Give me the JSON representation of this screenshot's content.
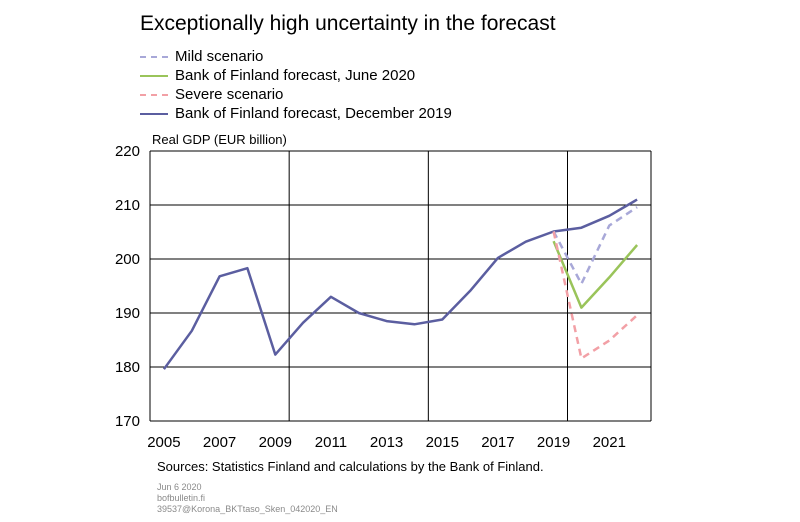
{
  "title": "Exceptionally high uncertainty in the forecast",
  "colors": {
    "mild": "#a8a8d8",
    "june2020": "#9ac45a",
    "severe": "#f2a0a6",
    "dec2019": "#5b5ea0",
    "grid": "#000000"
  },
  "legend": [
    {
      "label": "Mild scenario",
      "color": "#a8a8d8",
      "dash": true
    },
    {
      "label": "Bank of Finland forecast, June 2020",
      "color": "#9ac45a",
      "dash": false
    },
    {
      "label": "Severe scenario",
      "color": "#f2a0a6",
      "dash": true
    },
    {
      "label": "Bank of Finland forecast, December 2019",
      "color": "#5b5ea0",
      "dash": false
    }
  ],
  "sources": "Sources: Statistics Finland and calculations by the Bank of Finland.",
  "footer": {
    "date": "Jun 6 2020",
    "site": "bofbulletin.fi",
    "code": "39537@Korona_BKTtaso_Sken_042020_EN"
  },
  "chart_data": {
    "type": "line",
    "title": "Exceptionally high uncertainty in the forecast",
    "ylabel": "Real GDP (EUR billion)",
    "xlabel": "",
    "xlim": [
      2004.5,
      2022.5
    ],
    "ylim": [
      170,
      220
    ],
    "yticks": [
      170,
      180,
      190,
      200,
      210,
      220
    ],
    "xticks": [
      2005,
      2007,
      2009,
      2011,
      2013,
      2015,
      2017,
      2019,
      2021
    ],
    "xgrid": [
      2004.5,
      2009.5,
      2014.5,
      2019.5,
      2022.5
    ],
    "grid": true,
    "legend_position": "top-left, above plot",
    "series": [
      {
        "name": "Bank of Finland forecast, December 2019",
        "color": "#5b5ea0",
        "dash": false,
        "x": [
          2005,
          2006,
          2007,
          2008,
          2009,
          2010,
          2011,
          2012,
          2013,
          2014,
          2015,
          2016,
          2017,
          2018,
          2019,
          2020,
          2021,
          2022
        ],
        "y": [
          179.6,
          186.7,
          196.8,
          198.3,
          182.3,
          188.2,
          193.0,
          190.0,
          188.5,
          187.9,
          188.8,
          194.1,
          200.2,
          203.2,
          205.1,
          205.8,
          208.0,
          211.0
        ]
      },
      {
        "name": "Mild scenario",
        "color": "#a8a8d8",
        "dash": true,
        "x": [
          2019,
          2020,
          2021,
          2022
        ],
        "y": [
          205.1,
          195.4,
          206.2,
          209.6
        ]
      },
      {
        "name": "Bank of Finland forecast, June 2020",
        "color": "#9ac45a",
        "dash": false,
        "x": [
          2019,
          2020,
          2021,
          2022
        ],
        "y": [
          203.3,
          191.0,
          196.6,
          202.6
        ]
      },
      {
        "name": "Severe scenario",
        "color": "#f2a0a6",
        "dash": true,
        "x": [
          2019,
          2020,
          2021,
          2022
        ],
        "y": [
          205.1,
          181.6,
          184.9,
          189.6
        ]
      }
    ]
  }
}
